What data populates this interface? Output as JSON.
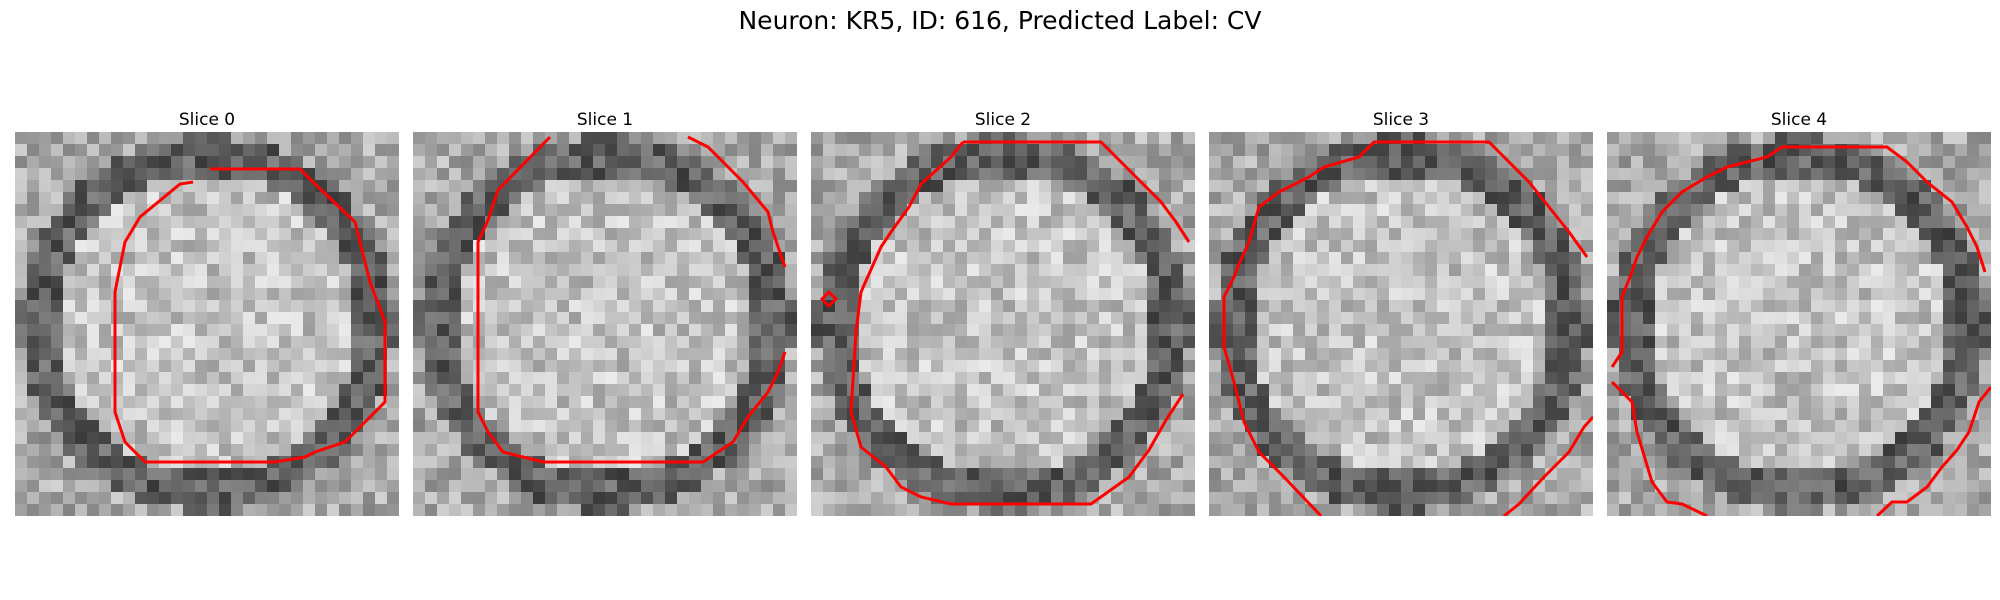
{
  "figure": {
    "title": "Neuron: KR5, ID: 616, Predicted Label: CV",
    "contour_color": "#ff0000"
  },
  "panels": [
    {
      "title": "Slice 0"
    },
    {
      "title": "Slice 1"
    },
    {
      "title": "Slice 2"
    },
    {
      "title": "Slice 3"
    },
    {
      "title": "Slice 4"
    }
  ]
}
